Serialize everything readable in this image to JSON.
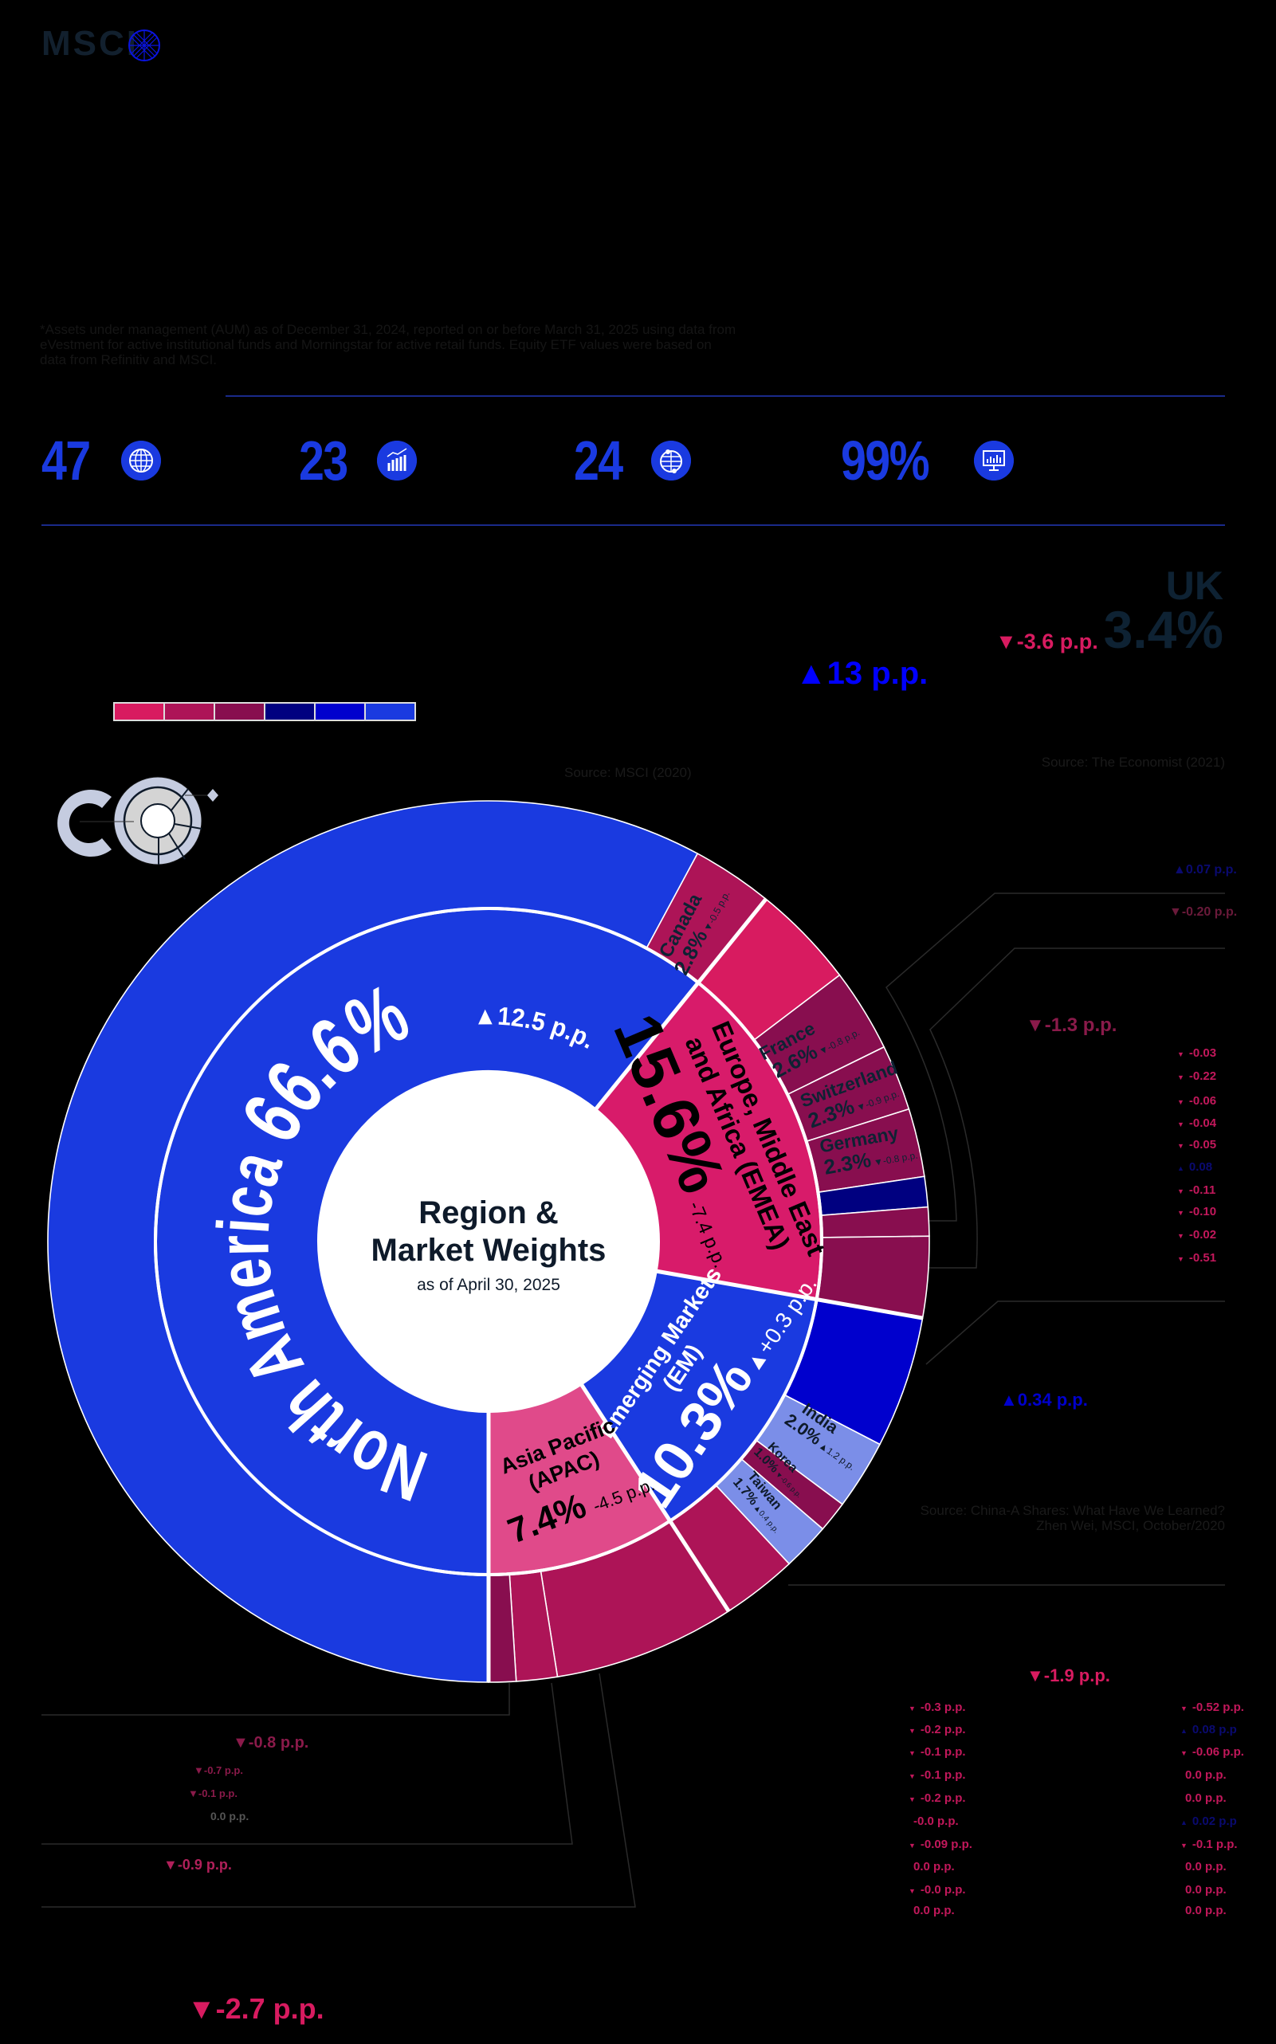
{
  "brand": {
    "logo_text": "MSCI",
    "logo_icon": "globe-grid-icon",
    "accent": "#1a3ae0"
  },
  "footnote": "*Assets under management (AUM) as of December 31, 2024, reported on or before March 31, 2025 using data from eVestment for active institutional funds and Morningstar for active retail funds. Equity ETF values were based on data from Refinitiv and MSCI.",
  "stats": [
    {
      "value": "47",
      "icon": "globe-network-icon"
    },
    {
      "value": "23",
      "icon": "bar-chart-growth-icon"
    },
    {
      "value": "24",
      "icon": "globe-location-icon"
    },
    {
      "value": "99%",
      "icon": "monitor-chart-icon"
    }
  ],
  "uk": {
    "label": "UK",
    "value": "3.4%",
    "change": "▼-3.6 p.p."
  },
  "callout_13": "▲13 p.p.",
  "legend": {
    "colors": [
      "#d81b60",
      "#ad1457",
      "#880e4f",
      "#000080",
      "#0000cd",
      "#1a3ae0"
    ]
  },
  "sources": {
    "msci": "Source:  MSCI (2020)",
    "economist": "Source:  The Economist (2021)",
    "china_a": [
      "Source:  China-A Shares: What Have We Learned?",
      "Zhen Wei, MSCI, October/2020"
    ]
  },
  "chart_data": {
    "type": "sunburst",
    "title": "Region &",
    "title_line2": "Market Weights",
    "subtitle": "as of April 30, 2025",
    "regions": [
      {
        "name": "North America",
        "value": "66.6%",
        "change": "▲12.5 p.p.",
        "color": "#1a3ae0"
      },
      {
        "name_lines": [
          "Europe, Middle East",
          "and Africa (EMEA)"
        ],
        "value": "15.6%",
        "change": "-7.4 p.p.",
        "color": "#d81b6a"
      },
      {
        "name_lines": [
          "Emerging Markets",
          "(EM)"
        ],
        "value": "10.3%",
        "change": "▲+0.3 p.p.",
        "color": "#1a3ae0"
      },
      {
        "name_lines": [
          "Asia Pacific",
          "(APAC)"
        ],
        "value": "7.4%",
        "change": "-4.5 p.p.",
        "color": "#e04a8a"
      }
    ],
    "markets": [
      {
        "name": "Canada",
        "value": "2.8%",
        "change": "▼-0.5 p.p."
      },
      {
        "name": "France",
        "value": "2.6%",
        "change": "▼-0.8 p.p."
      },
      {
        "name": "Switzerland",
        "value": "2.3%",
        "change": "▼-0.9 p.p."
      },
      {
        "name": "Germany",
        "value": "2.3%",
        "change": "▼-0.8 p.p."
      },
      {
        "name": "India",
        "value": "2.0%",
        "change": "▲1.2 p.p."
      },
      {
        "name": "Korea",
        "value": "1.0%",
        "change": "▼-0.6 p.p."
      },
      {
        "name": "Taiwan",
        "value": "1.7%",
        "change": "▲0.4 p.p."
      }
    ],
    "outer_ring_colors": [
      "#1a3ae0",
      "#ad1457",
      "#d81b60",
      "#880e4f",
      "#880e4f",
      "#880e4f",
      "#000080",
      "#880e4f",
      "#880e4f",
      "#0000cd",
      "#7b8ee8",
      "#880e4f",
      "#7b8ee8",
      "#ad1457",
      "#ad1457",
      "#ad1457",
      "#880e4f"
    ]
  },
  "annotations": {
    "top_right": {
      "up": "▲0.07 p.p.",
      "down": "▼-0.20 p.p."
    },
    "emea_total": "▼-1.3 p.p.",
    "emea_list": [
      {
        "arrow": "▼",
        "text": "-0.03",
        "up": false
      },
      {
        "arrow": "▼",
        "text": "-0.22",
        "up": false
      },
      {
        "arrow": "▼",
        "text": "-0.06",
        "up": false
      },
      {
        "arrow": "▼",
        "text": "-0.04",
        "up": false
      },
      {
        "arrow": "▼",
        "text": "-0.05",
        "up": false
      },
      {
        "arrow": "▲",
        "text": "0.08",
        "up": true
      },
      {
        "arrow": "▼",
        "text": "-0.11",
        "up": false
      },
      {
        "arrow": "▼",
        "text": "-0.10",
        "up": false
      },
      {
        "arrow": "▼",
        "text": "-0.02",
        "up": false
      },
      {
        "arrow": "▼",
        "text": "-0.51",
        "up": false
      }
    ],
    "em_change": "▲0.34 p.p.",
    "em_total": "▼-1.9 p.p.",
    "em_list_left": [
      {
        "arrow": "▼",
        "text": "-0.3 p.p."
      },
      {
        "arrow": "▼",
        "text": "-0.2 p.p."
      },
      {
        "arrow": "▼",
        "text": "-0.1 p.p."
      },
      {
        "arrow": "▼",
        "text": "-0.1 p.p."
      },
      {
        "arrow": "▼",
        "text": "-0.2 p.p."
      },
      {
        "arrow": "",
        "text": "-0.0 p.p."
      },
      {
        "arrow": "▼",
        "text": "-0.09 p.p."
      },
      {
        "arrow": "",
        "text": "0.0 p.p."
      },
      {
        "arrow": "▼",
        "text": "-0.0 p.p."
      },
      {
        "arrow": "",
        "text": "0.0 p.p."
      }
    ],
    "em_list_right": [
      {
        "arrow": "▼",
        "text": "-0.52 p.p.",
        "up": false
      },
      {
        "arrow": "▲",
        "text": "0.08 p.p",
        "up": true
      },
      {
        "arrow": "▼",
        "text": "-0.06 p.p.",
        "up": false
      },
      {
        "arrow": "",
        "text": "0.0 p.p.",
        "up": false
      },
      {
        "arrow": "",
        "text": "0.0 p.p.",
        "up": false
      },
      {
        "arrow": "▲",
        "text": "0.02 p.p",
        "up": true
      },
      {
        "arrow": "▼",
        "text": "-0.1 p.p.",
        "up": false
      },
      {
        "arrow": "",
        "text": "0.0 p.p.",
        "up": false
      },
      {
        "arrow": "",
        "text": "0.0 p.p.",
        "up": false
      },
      {
        "arrow": "",
        "text": "0.0 p.p.",
        "up": false
      }
    ],
    "apac": {
      "a": "▼-0.8 p.p.",
      "b": "▼-0.7 p.p.",
      "c": "▼-0.1 p.p.",
      "d": "0.0 p.p.",
      "e": "▼-0.9 p.p.",
      "total": "▼-2.7 p.p."
    }
  }
}
